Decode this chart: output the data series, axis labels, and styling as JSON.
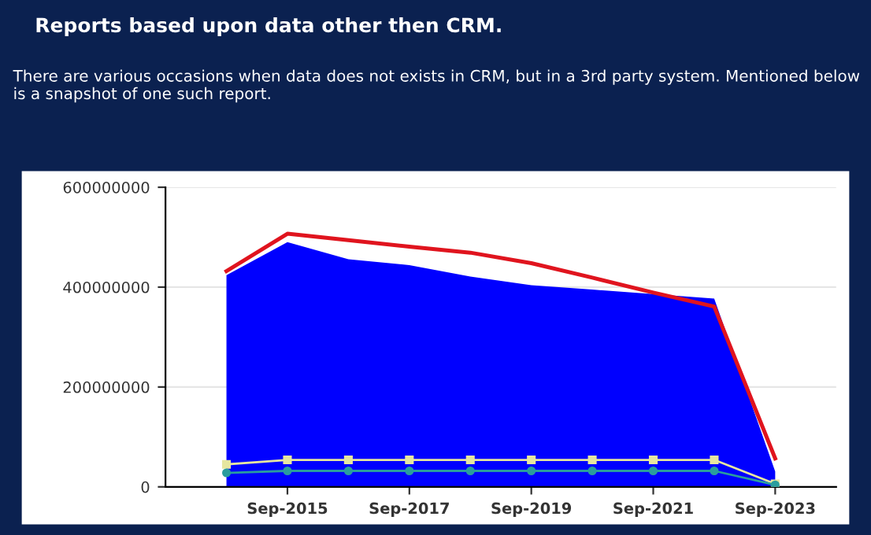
{
  "chart_data": {
    "type": "line",
    "title": "Reports based upon data other then CRM.",
    "annotations": [
      "There are various occasions when data does not exists in CRM, but in a 3rd party system. Mentioned below is a snapshot of one such report."
    ],
    "categories": [
      null,
      "Sep-2015",
      null,
      "Sep-2017",
      null,
      "Sep-2019",
      null,
      "Sep-2021",
      null,
      "Sep-2023"
    ],
    "series": [
      {
        "type": "area",
        "color": "#0000ff",
        "values": [
          424000000,
          490000000,
          456000000,
          444000000,
          421000000,
          404000000,
          395000000,
          386000000,
          377000000,
          31000000
        ]
      },
      {
        "color": "#e0141e",
        "marker": "none",
        "values": [
          432000000,
          507000000,
          494000000,
          481000000,
          469000000,
          448000000,
          419000000,
          389000000,
          361000000,
          57000000
        ]
      },
      {
        "color": "#e6e6a0",
        "marker": "square",
        "values": [
          45000000,
          54000000,
          54000000,
          54000000,
          54000000,
          54000000,
          54000000,
          54000000,
          54000000,
          6000000
        ]
      },
      {
        "color": "#2a9d9d",
        "marker": "circle",
        "values": [
          28000000,
          32000000,
          32000000,
          32000000,
          32000000,
          32000000,
          32000000,
          32000000,
          32000000,
          4000000
        ]
      }
    ],
    "ylim": [
      0,
      600000000
    ],
    "yticks": [
      0,
      200000000,
      400000000,
      600000000
    ],
    "grid": "y"
  }
}
